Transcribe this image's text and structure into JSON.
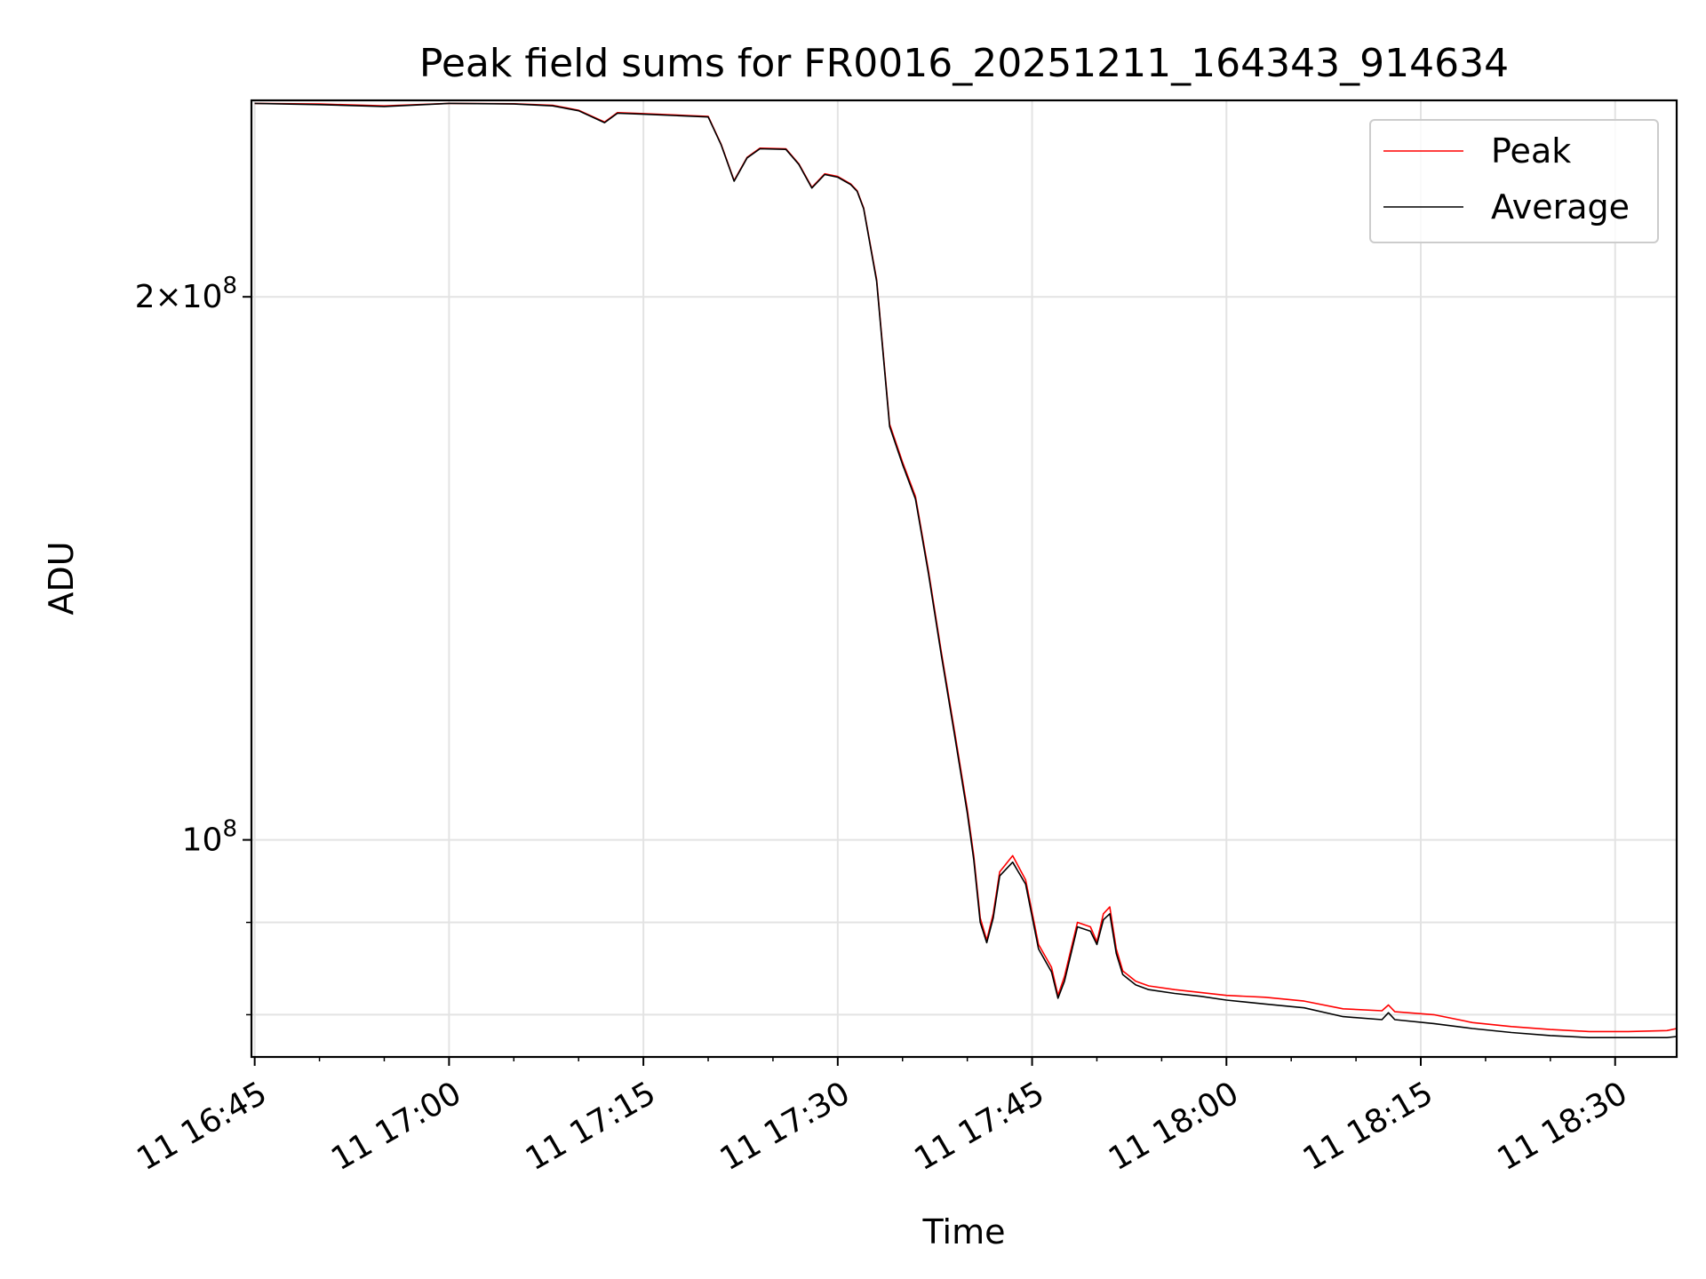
{
  "chart_data": {
    "type": "line",
    "title": "Peak field sums for FR0016_20251211_164343_914634",
    "xlabel": "Time",
    "ylabel": "ADU",
    "x_axis_type": "time",
    "y_scale": "log",
    "xlim": [
      "16:44:45",
      "18:34:45"
    ],
    "ylim": [
      75800000,
      257000000
    ],
    "grid": true,
    "legend_position": "top-right",
    "x_ticks": [
      {
        "value": "16:45",
        "label": "11 16:45"
      },
      {
        "value": "17:00",
        "label": "11 17:00"
      },
      {
        "value": "17:15",
        "label": "11 17:15"
      },
      {
        "value": "17:30",
        "label": "11 17:30"
      },
      {
        "value": "17:45",
        "label": "11 17:45"
      },
      {
        "value": "18:00",
        "label": "11 18:00"
      },
      {
        "value": "18:15",
        "label": "11 18:15"
      },
      {
        "value": "18:30",
        "label": "11 18:30"
      }
    ],
    "y_major_ticks": [
      {
        "value": 100000000,
        "base": "10",
        "exp": "8",
        "mult": ""
      },
      {
        "value": 200000000,
        "base": "10",
        "exp": "8",
        "mult": "2×"
      }
    ],
    "y_minor_ticks": [
      80000000,
      90000000
    ],
    "series": [
      {
        "name": "Peak",
        "color": "#ff0000",
        "points": [
          [
            "16:45",
            256000000
          ],
          [
            "16:50",
            255800000
          ],
          [
            "16:55",
            255200000
          ],
          [
            "17:00",
            256000000
          ],
          [
            "17:05",
            255900000
          ],
          [
            "17:08",
            255400000
          ],
          [
            "17:10",
            253800000
          ],
          [
            "17:12",
            250000000
          ],
          [
            "17:13",
            253000000
          ],
          [
            "17:15",
            252700000
          ],
          [
            "17:20",
            251800000
          ],
          [
            "17:21",
            243000000
          ],
          [
            "17:22",
            232000000
          ],
          [
            "17:23",
            239000000
          ],
          [
            "17:24",
            241800000
          ],
          [
            "17:26",
            241600000
          ],
          [
            "17:27",
            237000000
          ],
          [
            "17:28",
            230000000
          ],
          [
            "17:29",
            234000000
          ],
          [
            "17:30",
            233200000
          ],
          [
            "17:31",
            231000000
          ],
          [
            "17:31:30",
            229000000
          ],
          [
            "17:32",
            224000000
          ],
          [
            "17:33",
            204500000
          ],
          [
            "17:34",
            170000000
          ],
          [
            "17:35",
            162000000
          ],
          [
            "17:36",
            155000000
          ],
          [
            "17:37",
            141000000
          ],
          [
            "17:38",
            127000000
          ],
          [
            "17:39",
            115000000
          ],
          [
            "17:40",
            104000000
          ],
          [
            "17:40:30",
            98000000
          ],
          [
            "17:41",
            90500000
          ],
          [
            "17:41:30",
            88000000
          ],
          [
            "17:42",
            91000000
          ],
          [
            "17:42:30",
            96000000
          ],
          [
            "17:43:30",
            98000000
          ],
          [
            "17:44:30",
            95000000
          ],
          [
            "17:45:30",
            87500000
          ],
          [
            "17:46:30",
            85000000
          ],
          [
            "17:47",
            82000000
          ],
          [
            "17:47:30",
            84000000
          ],
          [
            "17:48:30",
            90000000
          ],
          [
            "17:49:30",
            89500000
          ],
          [
            "17:50",
            87800000
          ],
          [
            "17:50:30",
            91000000
          ],
          [
            "17:51",
            91800000
          ],
          [
            "17:51:30",
            87000000
          ],
          [
            "17:52",
            84600000
          ],
          [
            "17:53",
            83500000
          ],
          [
            "17:54",
            83000000
          ],
          [
            "17:56",
            82600000
          ],
          [
            "17:58",
            82300000
          ],
          [
            "18:00",
            82000000
          ],
          [
            "18:03",
            81800000
          ],
          [
            "18:06",
            81400000
          ],
          [
            "18:09",
            80600000
          ],
          [
            "18:12",
            80400000
          ],
          [
            "18:12:30",
            81000000
          ],
          [
            "18:13",
            80300000
          ],
          [
            "18:16",
            80000000
          ],
          [
            "18:19",
            79200000
          ],
          [
            "18:22",
            78800000
          ],
          [
            "18:25",
            78500000
          ],
          [
            "18:28",
            78300000
          ],
          [
            "18:31",
            78300000
          ],
          [
            "18:34",
            78400000
          ],
          [
            "18:34:45",
            78600000
          ]
        ]
      },
      {
        "name": "Average",
        "color": "#000000",
        "points": [
          [
            "16:45",
            256000000
          ],
          [
            "16:50",
            255600000
          ],
          [
            "16:55",
            255000000
          ],
          [
            "17:00",
            256000000
          ],
          [
            "17:05",
            255800000
          ],
          [
            "17:08",
            255200000
          ],
          [
            "17:10",
            253600000
          ],
          [
            "17:12",
            249800000
          ],
          [
            "17:13",
            252800000
          ],
          [
            "17:15",
            252500000
          ],
          [
            "17:20",
            251600000
          ],
          [
            "17:21",
            242800000
          ],
          [
            "17:22",
            231800000
          ],
          [
            "17:23",
            238800000
          ],
          [
            "17:24",
            241600000
          ],
          [
            "17:26",
            241400000
          ],
          [
            "17:27",
            236800000
          ],
          [
            "17:28",
            229800000
          ],
          [
            "17:29",
            233800000
          ],
          [
            "17:30",
            233000000
          ],
          [
            "17:31",
            230800000
          ],
          [
            "17:31:30",
            228800000
          ],
          [
            "17:32",
            223800000
          ],
          [
            "17:33",
            204000000
          ],
          [
            "17:34",
            169500000
          ],
          [
            "17:35",
            161500000
          ],
          [
            "17:36",
            154500000
          ],
          [
            "17:37",
            140500000
          ],
          [
            "17:38",
            126500000
          ],
          [
            "17:39",
            114500000
          ],
          [
            "17:40",
            103500000
          ],
          [
            "17:40:30",
            97500000
          ],
          [
            "17:41",
            90000000
          ],
          [
            "17:41:30",
            87700000
          ],
          [
            "17:42",
            90500000
          ],
          [
            "17:42:30",
            95500000
          ],
          [
            "17:43:30",
            97200000
          ],
          [
            "17:44:30",
            94500000
          ],
          [
            "17:45:30",
            87000000
          ],
          [
            "17:46:30",
            84500000
          ],
          [
            "17:47",
            81700000
          ],
          [
            "17:47:30",
            83500000
          ],
          [
            "17:48:30",
            89500000
          ],
          [
            "17:49:30",
            89000000
          ],
          [
            "17:50",
            87500000
          ],
          [
            "17:50:30",
            90300000
          ],
          [
            "17:51",
            91000000
          ],
          [
            "17:51:30",
            86500000
          ],
          [
            "17:52",
            84200000
          ],
          [
            "17:53",
            83100000
          ],
          [
            "17:54",
            82600000
          ],
          [
            "17:56",
            82200000
          ],
          [
            "17:58",
            81900000
          ],
          [
            "18:00",
            81500000
          ],
          [
            "18:03",
            81100000
          ],
          [
            "18:06",
            80700000
          ],
          [
            "18:09",
            79800000
          ],
          [
            "18:12",
            79500000
          ],
          [
            "18:12:30",
            80200000
          ],
          [
            "18:13",
            79500000
          ],
          [
            "18:16",
            79100000
          ],
          [
            "18:19",
            78600000
          ],
          [
            "18:22",
            78200000
          ],
          [
            "18:25",
            77900000
          ],
          [
            "18:28",
            77700000
          ],
          [
            "18:31",
            77700000
          ],
          [
            "18:34",
            77700000
          ],
          [
            "18:34:45",
            77800000
          ]
        ]
      }
    ]
  }
}
